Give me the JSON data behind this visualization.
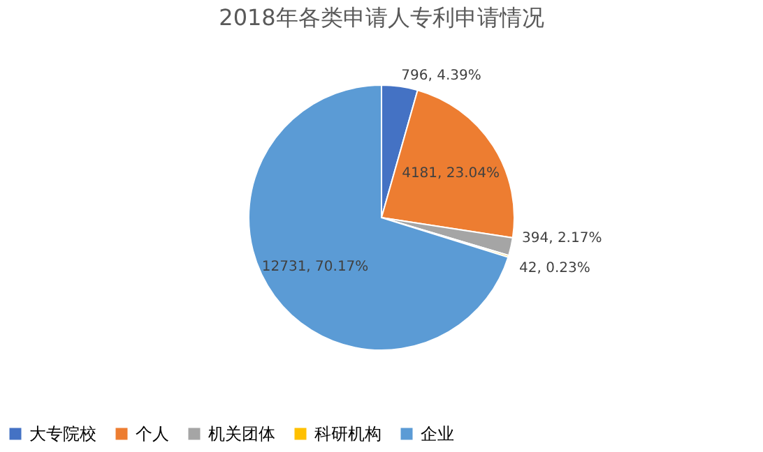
{
  "chart_data": {
    "type": "pie",
    "title": "2018年各类申请人专利申请情况",
    "categories": [
      "大专院校",
      "个人",
      "机关团体",
      "科研机构",
      "企业"
    ],
    "values": [
      796,
      4181,
      394,
      42,
      12731
    ],
    "colors": [
      "#4472c4",
      "#ed7d31",
      "#a5a5a5",
      "#ffc000",
      "#5b9bd5"
    ],
    "value_labels": [
      "796, 4.39%",
      "4181, 23.04%",
      "394, 2.17%",
      "42, 0.23%",
      "12731, 70.17%"
    ],
    "legend": "bottom"
  }
}
